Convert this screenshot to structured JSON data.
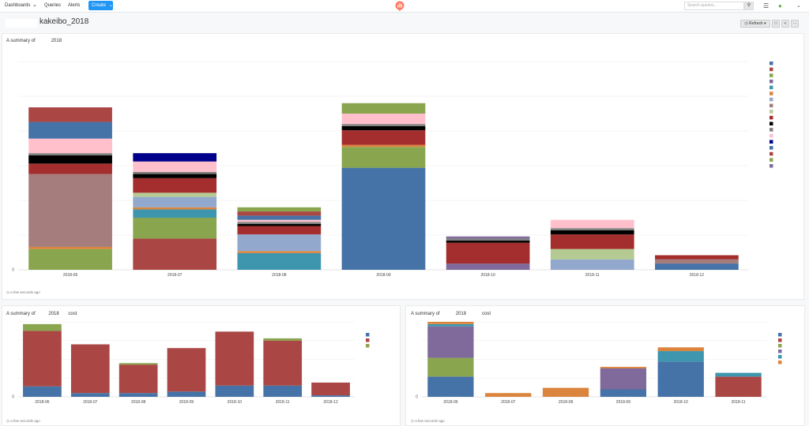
{
  "nav": {
    "dashboards": "Dashboards",
    "queries": "Queries",
    "alerts": "Alerts",
    "create": "Create",
    "search_placeholder": "Search queries..."
  },
  "page": {
    "title": "kakeibo_2018",
    "refresh": "Refresh"
  },
  "icons": {
    "dropdown": "chevron-down-icon",
    "search": "search-icon",
    "settings": "sliders-icon",
    "globe": "globe-icon",
    "fullscreen": "fullscreen-icon",
    "share": "share-icon",
    "more": "ellipsis-icon"
  },
  "widgets": [
    {
      "title_a": "A summary of",
      "title_b": "2018",
      "title_c": "",
      "footer": "a few seconds ago"
    },
    {
      "title_a": "A summary of",
      "title_b": "2018",
      "title_c": "cost",
      "footer": "a few seconds ago"
    },
    {
      "title_a": "A summary of",
      "title_b": "2018",
      "title_c": "cost",
      "footer": "a few seconds ago"
    }
  ],
  "chart_data": [
    {
      "type": "bar",
      "stacked": true,
      "categories": [
        "2018-06",
        "2018-07",
        "2018-08",
        "2018-09",
        "2018-10",
        "2018-11",
        "2018-12"
      ],
      "ylim": [
        0,
        100
      ],
      "y_ticks": [
        0
      ],
      "grid": true,
      "legend": "right",
      "colors": [
        "#4572a7",
        "#aa4643",
        "#89a54e",
        "#80699b",
        "#3d96ae",
        "#db843d",
        "#92a8cd",
        "#a47d7c",
        "#b5ca92",
        "#a42e2e",
        "#000000",
        "#7f7f7f",
        "#ffc0cb",
        "#00008b"
      ],
      "series": [
        {
          "values": [
            0,
            0,
            0,
            49,
            0,
            0,
            3
          ]
        },
        {
          "values": [
            0,
            15,
            0,
            0,
            0,
            0,
            0
          ]
        },
        {
          "values": [
            10,
            10,
            0,
            10,
            0,
            0,
            0
          ]
        },
        {
          "values": [
            0,
            0,
            0,
            0,
            3,
            0,
            0
          ]
        },
        {
          "values": [
            0,
            4,
            8,
            0,
            0,
            0,
            0
          ]
        },
        {
          "values": [
            1,
            1,
            1,
            1,
            0,
            0,
            0
          ]
        },
        {
          "values": [
            0,
            5,
            8,
            0,
            0,
            5,
            0
          ]
        },
        {
          "values": [
            35,
            0,
            0,
            0,
            0,
            0,
            2
          ]
        },
        {
          "values": [
            0,
            2,
            0,
            0,
            0,
            5,
            0
          ]
        },
        {
          "values": [
            5,
            7,
            4,
            7,
            10,
            7,
            2
          ]
        },
        {
          "values": [
            4,
            2,
            1,
            2,
            1,
            2,
            0
          ]
        },
        {
          "values": [
            1,
            1,
            1,
            1,
            1,
            1,
            0
          ]
        },
        {
          "values": [
            7,
            5,
            1,
            5,
            0,
            4,
            0
          ]
        },
        {
          "values": [
            0,
            4,
            0,
            0,
            0,
            0,
            0
          ]
        },
        {
          "values": [
            8,
            0,
            2,
            0,
            0,
            0,
            0
          ]
        },
        {
          "values": [
            7,
            0,
            2,
            0,
            0,
            0,
            0
          ]
        },
        {
          "values": [
            0,
            0,
            2,
            5,
            0,
            0,
            0
          ]
        },
        {
          "values": [
            0,
            0,
            0,
            0,
            1,
            0,
            0
          ]
        }
      ]
    },
    {
      "type": "bar",
      "stacked": true,
      "categories": [
        "2018-06",
        "2018-07",
        "2018-08",
        "2018-09",
        "2018-10",
        "2018-11",
        "2018-12"
      ],
      "ylim": [
        0,
        100
      ],
      "y_ticks": [
        0
      ],
      "grid": true,
      "legend": "right",
      "colors": [
        "#4572a7",
        "#aa4643",
        "#89a54e"
      ],
      "series": [
        {
          "values": [
            14,
            5,
            5,
            7,
            15,
            15,
            2
          ]
        },
        {
          "values": [
            74,
            65,
            38,
            58,
            72,
            60,
            17
          ]
        },
        {
          "values": [
            9,
            0,
            2,
            0,
            0,
            3,
            0
          ]
        }
      ]
    },
    {
      "type": "bar",
      "stacked": true,
      "categories": [
        "2018-06",
        "2018-07",
        "2018-08",
        "2018-09",
        "2018-10",
        "2018-11"
      ],
      "ylim": [
        0,
        100
      ],
      "y_ticks": [
        0
      ],
      "grid": true,
      "legend": "right",
      "colors": [
        "#4572a7",
        "#aa4643",
        "#89a54e",
        "#80699b",
        "#3d96ae",
        "#db843d"
      ],
      "series": [
        {
          "values": [
            27,
            0,
            0,
            10,
            47,
            0
          ]
        },
        {
          "values": [
            0,
            0,
            0,
            0,
            0,
            27
          ]
        },
        {
          "values": [
            25,
            0,
            0,
            0,
            0,
            0
          ]
        },
        {
          "values": [
            42,
            0,
            0,
            28,
            0,
            0
          ]
        },
        {
          "values": [
            3,
            0,
            0,
            0,
            14,
            5
          ]
        },
        {
          "values": [
            3,
            5,
            12,
            2,
            5,
            0
          ]
        }
      ]
    }
  ]
}
